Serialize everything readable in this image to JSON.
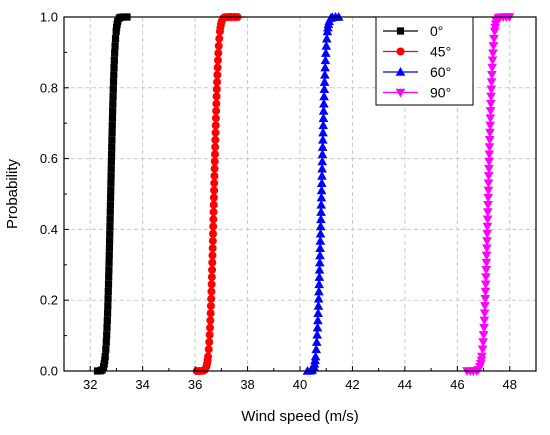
{
  "chart_data": {
    "type": "line",
    "title": "",
    "xlabel": "Wind speed (m/s)",
    "ylabel": "Probability",
    "xlim": [
      31,
      49
    ],
    "ylim": [
      0,
      1
    ],
    "xticks": [
      32,
      34,
      36,
      38,
      40,
      42,
      44,
      46,
      48
    ],
    "yticks": [
      0.0,
      0.2,
      0.4,
      0.6,
      0.8,
      1.0
    ],
    "grid": "dashed",
    "legend_position": "top-right",
    "series": [
      {
        "name": "0°",
        "color": "#000000",
        "marker": "square",
        "mu": 32.78,
        "sigma": 0.12,
        "xmin": 32.25,
        "xmax": 33.45
      },
      {
        "name": "45°",
        "color": "#ff0000",
        "marker": "circle",
        "mu": 36.72,
        "sigma": 0.13,
        "xmin": 35.95,
        "xmax": 37.95
      },
      {
        "name": "60°",
        "color": "#0000ff",
        "marker": "triangle-up",
        "mu": 40.82,
        "sigma": 0.13,
        "xmin": 40.25,
        "xmax": 41.55
      },
      {
        "name": "90°",
        "color": "#ff00ff",
        "marker": "triangle-down",
        "mu": 47.18,
        "sigma": 0.14,
        "xmin": 46.3,
        "xmax": 48.05
      }
    ]
  }
}
